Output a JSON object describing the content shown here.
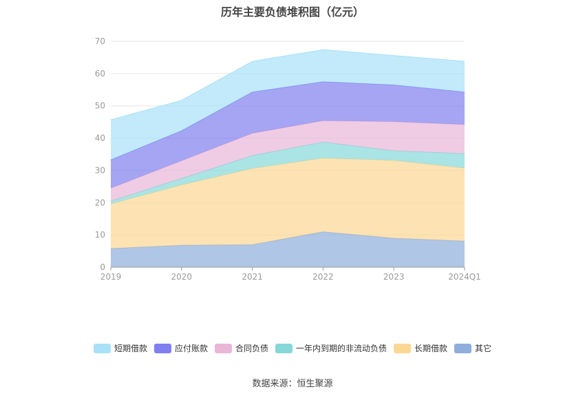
{
  "title": "历年主要负债堆积图（亿元）",
  "source": "数据来源：恒生聚源",
  "chart_data": {
    "type": "area",
    "stacked": true,
    "categories": [
      "2019",
      "2020",
      "2021",
      "2022",
      "2023",
      "2024Q1"
    ],
    "ylim": [
      0,
      70
    ],
    "yticks": [
      0,
      10,
      20,
      30,
      40,
      50,
      60,
      70
    ],
    "grid": true,
    "legend_position": "bottom",
    "series": [
      {
        "name": "其它",
        "color": "#8faedb",
        "values": [
          5.8,
          6.8,
          7.0,
          11.0,
          9.0,
          8.1
        ]
      },
      {
        "name": "长期借款",
        "color": "#fcd793",
        "values": [
          13.8,
          18.7,
          23.6,
          22.8,
          24.1,
          22.6
        ]
      },
      {
        "name": "一年内到期的非流动负债",
        "color": "#86d8d8",
        "values": [
          0.9,
          2.0,
          4.0,
          5.0,
          3.0,
          4.5
        ]
      },
      {
        "name": "合同负债",
        "color": "#e8b7d8",
        "values": [
          4.0,
          5.5,
          6.9,
          6.6,
          9.0,
          9.0
        ]
      },
      {
        "name": "应付账款",
        "color": "#7f7ff0",
        "values": [
          8.8,
          9.3,
          12.8,
          12.1,
          11.4,
          10.1
        ]
      },
      {
        "name": "短期借款",
        "color": "#a8e1f8",
        "values": [
          12.4,
          9.4,
          9.5,
          9.9,
          9.1,
          9.5
        ]
      }
    ],
    "legend_order": [
      "短期借款",
      "应付账款",
      "合同负债",
      "一年内到期的非流动负债",
      "长期借款",
      "其它"
    ]
  }
}
